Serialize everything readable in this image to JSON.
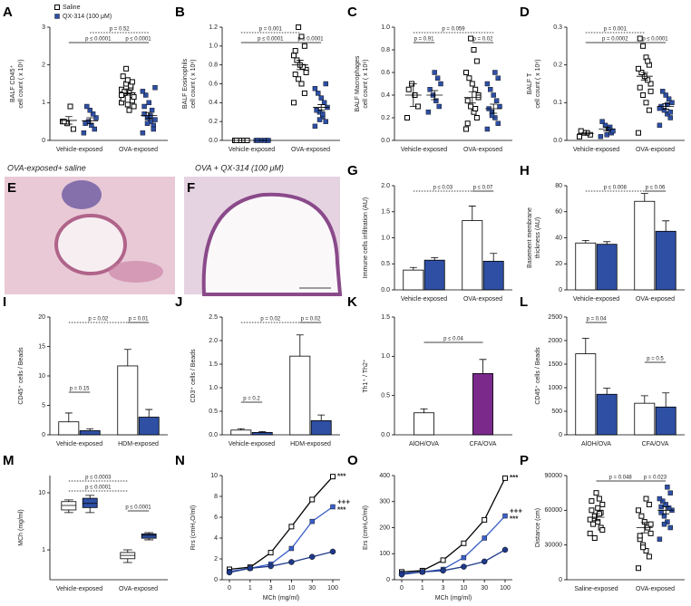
{
  "images": [
    {
      "label": "E",
      "title": "OVA-exposed+ saline"
    },
    {
      "label": "F",
      "title": "OVA + QX-314 (100 μM)"
    }
  ],
  "chart_data": [
    {
      "type": "strip",
      "label": "A",
      "ylabel": [
        "BALF CD45⁺",
        "cell count ( x 10⁶)"
      ],
      "categories": [
        "Vehicle-exposed",
        "OVA-exposed"
      ],
      "ylim": [
        0,
        3
      ],
      "yticks": [
        0,
        1,
        2,
        3
      ],
      "series": [
        {
          "name": "Saline",
          "marker": "square-open",
          "color": "#000000",
          "values": [
            [
              0.5,
              0.3,
              0.9,
              0.45,
              0.5
            ],
            [
              1.0,
              1.2,
              1.3,
              1.5,
              1.1,
              0.9,
              1.4,
              1.6,
              1.25,
              1.35,
              1.05,
              0.8,
              1.9,
              1.7,
              1.15,
              1.45,
              0.95,
              1.3,
              1.2,
              1.55
            ]
          ],
          "mean": [
            0.53,
            1.26
          ],
          "sem": [
            0.1,
            0.06
          ]
        },
        {
          "name": "QX-314 (100  μM)",
          "marker": "square",
          "color": "#2e4fa3",
          "values": [
            [
              0.2,
              0.3,
              0.4,
              0.5,
              0.45,
              0.6,
              0.7,
              0.8,
              0.9
            ],
            [
              0.2,
              0.4,
              0.5,
              0.6,
              0.7,
              0.55,
              0.8,
              1.0,
              1.2,
              1.3,
              0.3,
              0.65,
              0.45,
              0.9,
              1.4
            ]
          ],
          "mean": [
            0.52,
            0.66
          ],
          "sem": [
            0.08,
            0.08
          ]
        }
      ],
      "comparisons": [
        "p = 0.52",
        "p ≤ 0.0001",
        "p ≤ 0.0001"
      ]
    },
    {
      "type": "strip",
      "label": "B",
      "ylabel": [
        "BALF Eosinophils",
        "cell count ( x 10⁶)"
      ],
      "categories": [
        "Vehicle-exposed",
        "OVA-exposed"
      ],
      "ylim": [
        0,
        1.2
      ],
      "yticks": [
        {
          "value": 0,
          "label": "0.0"
        },
        0.2,
        0.4,
        0.6,
        0.8,
        {
          "value": 1,
          "label": "1.0"
        },
        1.2
      ],
      "series": [
        {
          "marker": "square-open",
          "color": "#000000",
          "values": [
            [
              0,
              0,
              0,
              0,
              0,
              0
            ],
            [
              0.4,
              0.5,
              0.6,
              0.65,
              0.7,
              0.75,
              0.78,
              0.8,
              0.85,
              0.9,
              1.0,
              1.1,
              1.2,
              0.95,
              0.72
            ]
          ],
          "mean": [
            0,
            0.8
          ],
          "sem": [
            0,
            0.05
          ]
        },
        {
          "marker": "square",
          "color": "#2e4fa3",
          "values": [
            [
              0,
              0,
              0,
              0,
              0,
              0
            ],
            [
              0.15,
              0.2,
              0.25,
              0.3,
              0.32,
              0.35,
              0.4,
              0.45,
              0.5,
              0.55,
              0.6,
              0.28,
              0.22
            ]
          ],
          "mean": [
            0,
            0.35
          ],
          "sem": [
            0,
            0.03
          ]
        }
      ],
      "comparisons": [
        "p = 0.001",
        "p ≤ 0.0001",
        "p ≤ 0.0001"
      ]
    },
    {
      "type": "strip",
      "label": "C",
      "ylabel": [
        "BALF Macrophages",
        "cell count ( x 10⁶)"
      ],
      "categories": [
        "Vehicle-exposed",
        "OVA-exposed"
      ],
      "ylim": [
        0,
        1
      ],
      "yticks": [
        {
          "value": 0,
          "label": "0.0"
        },
        0.2,
        0.4,
        0.6,
        0.8,
        {
          "value": 1,
          "label": "1.0"
        }
      ],
      "series": [
        {
          "marker": "square-open",
          "color": "#000000",
          "values": [
            [
              0.2,
              0.3,
              0.4,
              0.5,
              0.45
            ],
            [
              0.1,
              0.2,
              0.25,
              0.3,
              0.35,
              0.4,
              0.45,
              0.5,
              0.55,
              0.6,
              0.7,
              0.8,
              0.9,
              0.15,
              0.38,
              0.28
            ]
          ],
          "mean": [
            0.4,
            0.38
          ],
          "sem": [
            0.1,
            0.05
          ]
        },
        {
          "marker": "square",
          "color": "#2e4fa3",
          "values": [
            [
              0.25,
              0.3,
              0.35,
              0.4,
              0.45,
              0.5,
              0.55,
              0.6
            ],
            [
              0.1,
              0.15,
              0.2,
              0.25,
              0.28,
              0.3,
              0.35,
              0.4,
              0.45,
              0.5,
              0.55,
              0.6,
              0.22
            ]
          ],
          "mean": [
            0.4,
            0.28
          ],
          "sem": [
            0.04,
            0.04
          ]
        }
      ],
      "comparisons": [
        "p = 0.059",
        "p = 0.91",
        "p = 0.02"
      ]
    },
    {
      "type": "strip",
      "label": "D",
      "ylabel": [
        "BALF T",
        "cell count ( x 10⁶)"
      ],
      "categories": [
        "Vehicle-exposed",
        "OVA-exposed"
      ],
      "ylim": [
        0,
        0.3
      ],
      "yticks": [
        {
          "value": 0,
          "label": "0.0"
        },
        0.1,
        0.2,
        0.3
      ],
      "series": [
        {
          "marker": "square-open",
          "color": "#000000",
          "values": [
            [
              0.01,
              0.015,
              0.02,
              0.02,
              0.025
            ],
            [
              0.02,
              0.08,
              0.1,
              0.12,
              0.14,
              0.15,
              0.16,
              0.17,
              0.18,
              0.19,
              0.2,
              0.22,
              0.25,
              0.27,
              0.13,
              0.21
            ]
          ],
          "mean": [
            0.018,
            0.17
          ],
          "sem": [
            0.003,
            0.01
          ]
        },
        {
          "marker": "square",
          "color": "#2e4fa3",
          "values": [
            [
              0.01,
              0.02,
              0.03,
              0.04,
              0.05,
              0.025,
              0.035,
              0.015
            ],
            [
              0.04,
              0.06,
              0.07,
              0.08,
              0.09,
              0.1,
              0.11,
              0.12,
              0.13,
              0.085,
              0.075,
              0.095
            ]
          ],
          "mean": [
            0.03,
            0.09
          ],
          "sem": [
            0.005,
            0.007
          ]
        }
      ],
      "comparisons": [
        "p = 0.001",
        "p = 0.0002",
        "p ≤ 0.0001"
      ]
    },
    {
      "type": "bar",
      "label": "G",
      "ylabel": [
        "Immune cells infiltration (AU)"
      ],
      "categories": [
        "Vehicle-exposed",
        "OVA-exposed"
      ],
      "ylim": [
        0,
        2
      ],
      "yticks": [
        {
          "value": 0,
          "label": "0.0"
        },
        0.5,
        {
          "value": 1,
          "label": "1.0"
        },
        1.5,
        {
          "value": 2,
          "label": "2.0"
        }
      ],
      "series": [
        {
          "color": "#ffffff",
          "values": [
            0.38,
            1.33
          ],
          "errors": [
            0.05,
            0.28
          ]
        },
        {
          "color": "#2e4fa3",
          "values": [
            0.57,
            0.55
          ],
          "errors": [
            0.05,
            0.15
          ]
        }
      ],
      "comparisons": [
        "p ≤ 0.03",
        "p ≤ 0.07"
      ]
    },
    {
      "type": "bar",
      "label": "H",
      "ylabel": [
        "Basement membrane",
        "thickness (AU)"
      ],
      "categories": [
        "Vehicle-exposed",
        "OVA-exposed"
      ],
      "ylim": [
        0,
        80
      ],
      "yticks": [
        0,
        20,
        40,
        60,
        80
      ],
      "series": [
        {
          "color": "#ffffff",
          "values": [
            36,
            68
          ],
          "errors": [
            2,
            6
          ]
        },
        {
          "color": "#2e4fa3",
          "values": [
            35,
            45
          ],
          "errors": [
            2,
            8
          ]
        }
      ],
      "comparisons": [
        "p ≤ 0.008",
        "p ≤ 0.06"
      ]
    },
    {
      "type": "bar",
      "label": "I",
      "ylabel": [
        "CD45⁺ cells / Beads"
      ],
      "categories": [
        "Vehicle-exposed",
        "HDM-exposed"
      ],
      "ylim": [
        0,
        20
      ],
      "yticks": [
        0,
        5,
        10,
        15,
        20
      ],
      "series": [
        {
          "color": "#ffffff",
          "values": [
            2.2,
            11.7
          ],
          "errors": [
            1.5,
            2.8
          ]
        },
        {
          "color": "#2e4fa3",
          "values": [
            0.7,
            3.0
          ],
          "errors": [
            0.3,
            1.3
          ]
        }
      ],
      "comparisons": [
        "p = 0.15",
        "p = 0.02",
        "p = 0.01"
      ]
    },
    {
      "type": "bar",
      "label": "J",
      "ylabel": [
        "CD3⁺ cells / Beads"
      ],
      "categories": [
        "Vehicle-exposed",
        "HDM-exposed"
      ],
      "ylim": [
        0,
        2.5
      ],
      "yticks": [
        {
          "value": 0,
          "label": "0.0"
        },
        0.5,
        {
          "value": 1,
          "label": "1.0"
        },
        1.5,
        {
          "value": 2,
          "label": "2.0"
        },
        2.5
      ],
      "series": [
        {
          "color": "#ffffff",
          "values": [
            0.1,
            1.67
          ],
          "errors": [
            0.03,
            0.45
          ]
        },
        {
          "color": "#2e4fa3",
          "values": [
            0.05,
            0.3
          ],
          "errors": [
            0.02,
            0.12
          ]
        }
      ],
      "comparisons": [
        "p = 0.2",
        "p = 0.02",
        "p = 0.02"
      ]
    },
    {
      "type": "bar",
      "label": "K",
      "ylabel": [
        "Th1⁺ / Th2⁺"
      ],
      "categories": [
        "AlOH/OVA",
        "CFA/OVA"
      ],
      "ylim": [
        0,
        1.5
      ],
      "yticks": [
        {
          "value": 0,
          "label": "0.0"
        },
        0.5,
        {
          "value": 1,
          "label": "1.0"
        },
        1.5
      ],
      "series": [
        {
          "colors": [
            "#ffffff",
            "#7b2a8c"
          ],
          "values": [
            0.28,
            0.78
          ],
          "errors": [
            0.05,
            0.18
          ]
        }
      ],
      "comparisons": [
        "p ≤ 0.04"
      ]
    },
    {
      "type": "bar",
      "label": "L",
      "ylabel": [
        "CD45⁺ cells / Beads"
      ],
      "categories": [
        "AlOH/OVA",
        "CFA/OVA"
      ],
      "ylim": [
        0,
        2500
      ],
      "yticks": [
        0,
        500,
        1000,
        1500,
        2000,
        2500
      ],
      "series": [
        {
          "color": "#ffffff",
          "values": [
            1720,
            670
          ],
          "errors": [
            330,
            160
          ]
        },
        {
          "color": "#2e4fa3",
          "values": [
            860,
            590
          ],
          "errors": [
            130,
            300
          ]
        }
      ],
      "comparisons": [
        "p = 0.04",
        "p = 0.5"
      ]
    },
    {
      "type": "box",
      "label": "M",
      "ylabel": [
        "MCh (mg/ml)"
      ],
      "categories": [
        "Vehicle-exposed",
        "OVA-exposed"
      ],
      "log_y": true,
      "ylim": [
        0.3,
        20
      ],
      "yticks": [
        1,
        10
      ],
      "series": [
        {
          "color": "#ffffff",
          "values": [
            {
              "min": 4.5,
              "q1": 5,
              "median": 6,
              "q3": 7,
              "max": 7.5
            },
            {
              "min": 0.6,
              "q1": 0.7,
              "median": 0.8,
              "q3": 0.9,
              "max": 1.0
            }
          ]
        },
        {
          "color": "#2e4fa3",
          "values": [
            {
              "min": 4.5,
              "q1": 5.5,
              "median": 6.5,
              "q3": 8,
              "max": 9
            },
            {
              "min": 1.5,
              "q1": 1.6,
              "median": 1.8,
              "q3": 1.9,
              "max": 2.0
            }
          ]
        }
      ],
      "comparisons": [
        "p ≤ 0.0003",
        "p ≤ 0.0001",
        "p ≤ 0.0001"
      ]
    },
    {
      "type": "line",
      "label": "N",
      "ylabel": [
        "Rrs (cmH₂O/ml)"
      ],
      "xlabel": "MCh (mg/ml)",
      "categories": [
        "0",
        "1",
        "3",
        "10",
        "30",
        "100"
      ],
      "ylim": [
        0,
        10
      ],
      "yticks": [
        0,
        2,
        4,
        6,
        8,
        10
      ],
      "series": [
        {
          "marker": "square-open",
          "color": "#000000",
          "values": [
            1.0,
            1.2,
            2.6,
            5.1,
            7.7,
            9.9
          ]
        },
        {
          "marker": "square",
          "color": "#3a5fc8",
          "values": [
            0.8,
            1.1,
            1.5,
            3.0,
            5.6,
            7.0
          ]
        },
        {
          "marker": "circle",
          "color": "#1f3a8a",
          "values": [
            0.7,
            1.1,
            1.3,
            1.7,
            2.2,
            2.7
          ]
        }
      ],
      "annotations": [
        "***",
        "+++",
        "***"
      ],
      "annotation_color": "#e02020"
    },
    {
      "type": "line",
      "label": "O",
      "ylabel": [
        "Ers (cmH₂O/ml)"
      ],
      "xlabel": "MCh (mg/ml)",
      "categories": [
        "0",
        "1",
        "3",
        "10",
        "30",
        "100"
      ],
      "ylim": [
        0,
        400
      ],
      "yticks": [
        0,
        100,
        200,
        300,
        400
      ],
      "series": [
        {
          "marker": "square-open",
          "color": "#000000",
          "values": [
            30,
            35,
            75,
            140,
            230,
            390
          ]
        },
        {
          "marker": "square",
          "color": "#3a5fc8",
          "values": [
            25,
            30,
            40,
            85,
            160,
            245
          ]
        },
        {
          "marker": "circle",
          "color": "#1f3a8a",
          "values": [
            20,
            30,
            35,
            50,
            70,
            115
          ]
        }
      ],
      "annotations": [
        "***",
        "+++",
        "***"
      ],
      "annotation_color": "#e02020"
    },
    {
      "type": "strip",
      "label": "P",
      "ylabel": [
        "Distance (cm)"
      ],
      "categories": [
        "Saline-exposed",
        "OVA-exposed"
      ],
      "ylim": [
        0,
        90000
      ],
      "yticks": [
        0,
        30000,
        60000,
        90000
      ],
      "series": [
        {
          "marker": "square-open",
          "color": "#000000",
          "values": [
            [
              40000,
              45000,
              50000,
              55000,
              60000,
              65000,
              70000,
              75000,
              48000,
              52000,
              58000,
              62000,
              36000,
              68000,
              43000,
              57000
            ],
            [
              10000,
              20000,
              25000,
              30000,
              35000,
              40000,
              45000,
              50000,
              55000,
              60000,
              65000,
              70000,
              28000,
              38000,
              48000
            ]
          ],
          "mean": [
            54000,
            45000
          ],
          "sem": [
            3000,
            4500
          ]
        },
        {
          "marker": "square",
          "color": "#2e4fa3",
          "values": [
            null,
            [
              35000,
              45000,
              50000,
              55000,
              58000,
              60000,
              62000,
              65000,
              68000,
              70000,
              75000,
              80000,
              48000,
              63000
            ]
          ],
          "mean": [
            null,
            60000
          ],
          "sem": [
            null,
            3000
          ]
        }
      ],
      "comparisons": [
        "p = 0.048",
        "p = 0.023"
      ]
    }
  ]
}
